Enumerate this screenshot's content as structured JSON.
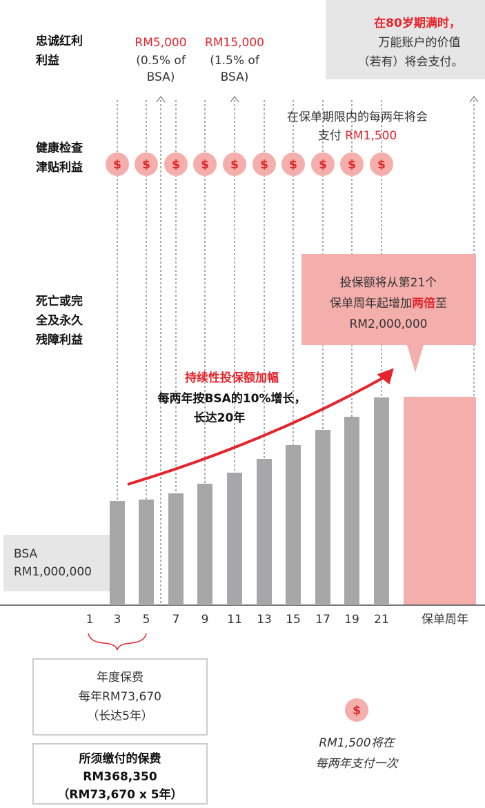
{
  "loyalty": {
    "label": [
      "忠诚红利",
      "利益"
    ],
    "bonus_1": {
      "amount": "RM5,000",
      "note": [
        "(0.5% of",
        "BSA)"
      ]
    },
    "bonus_2": {
      "amount": "RM15,000",
      "note": [
        "(1.5% of",
        "BSA)"
      ]
    }
  },
  "maturity": {
    "title": "在80岁期满时，",
    "lines": [
      "万能账户的价值",
      "（若有）将会支付。"
    ]
  },
  "health": {
    "label": [
      "健康检查",
      "津贴利益"
    ],
    "note_1": "在保单期限内的每两年将会",
    "note_2a": "支付 ",
    "note_2b": "RM1,500",
    "icon": "$"
  },
  "death": {
    "label": [
      "死亡或完",
      "全及永久",
      "残障利益"
    ],
    "callout": {
      "line_1": "投保额将从第21个",
      "line_2a": "保单周年起增加",
      "line_2b": "两倍",
      "line_2c": "至",
      "line_3": "RM2,000,000"
    },
    "growth": {
      "title": "持续性投保额加幅",
      "lines": [
        "每两年按BSA的10%增长，",
        "长达20年"
      ]
    },
    "bsa": [
      "BSA",
      "RM1,000,000"
    ]
  },
  "axis": {
    "ticks": [
      "1",
      "3",
      "5",
      "7",
      "9",
      "11",
      "13",
      "15",
      "17",
      "19",
      "21"
    ],
    "label": "保单周年"
  },
  "premium_box": {
    "lines": [
      "年度保费",
      "每年RM73,670",
      "（长达5年）"
    ]
  },
  "total_box": {
    "lines": [
      "所须缴付的保费",
      "RM368,350",
      "（RM73,670 x 5年）"
    ]
  },
  "legend": {
    "lines": [
      "RM1,500将在",
      "每两年支付一次"
    ]
  }
}
